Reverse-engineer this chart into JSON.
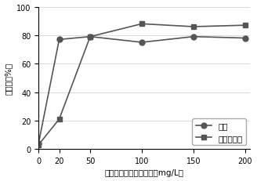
{
  "x": [
    0,
    20,
    50,
    100,
    150,
    200
  ],
  "turbidity": [
    4,
    77,
    79,
    75,
    79,
    78
  ],
  "algae": [
    3,
    21,
    79,
    88,
    86,
    87
  ],
  "line_color": "#555555",
  "marker_turbidity": "o",
  "marker_algae": "s",
  "legend_turbidity": "浊度",
  "legend_algae": "铜绿微囊藻",
  "xlabel": "三元复合絮凝剂投加量（mg/L）",
  "ylabel": "去除率（%）",
  "xlim": [
    0,
    205
  ],
  "ylim": [
    0,
    100
  ],
  "xticks": [
    0,
    20,
    50,
    100,
    150,
    200
  ],
  "yticks": [
    0,
    20,
    40,
    60,
    80,
    100
  ],
  "label_fontsize": 7.5,
  "tick_fontsize": 7,
  "legend_fontsize": 7.5,
  "linewidth": 1.2,
  "markersize": 5
}
